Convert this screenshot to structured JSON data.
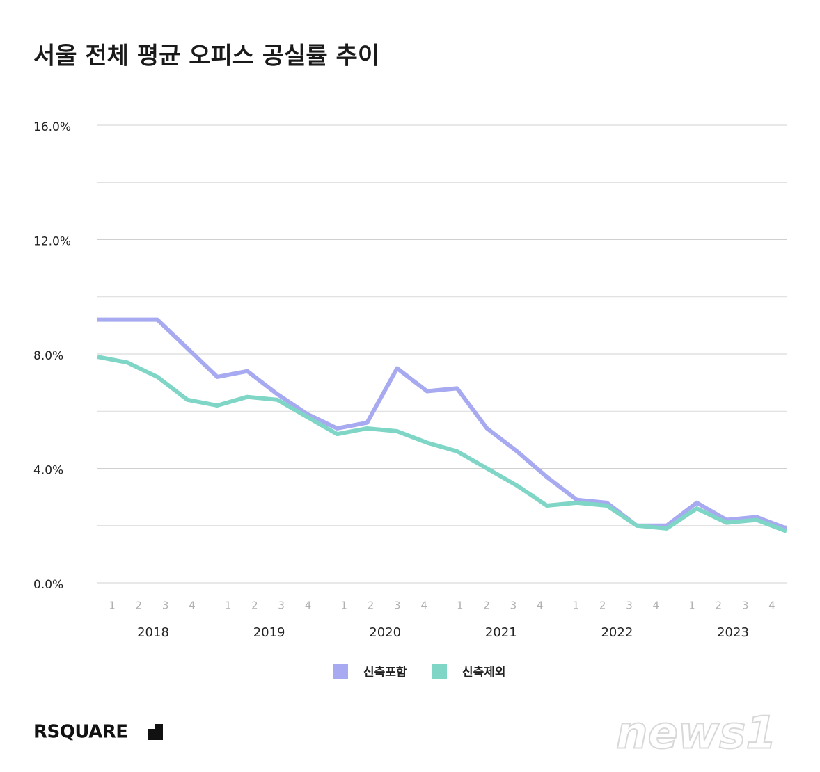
{
  "chart_data": {
    "type": "line",
    "title": "서울 전체 평균 오피스 공실률 추이",
    "categories": [
      "1",
      "2",
      "3",
      "4",
      "1",
      "2",
      "3",
      "4",
      "1",
      "2",
      "3",
      "4",
      "1",
      "2",
      "3",
      "4",
      "1",
      "2",
      "3",
      "4",
      "1",
      "2",
      "3",
      "4"
    ],
    "category_groups": [
      "2018",
      "2019",
      "2020",
      "2021",
      "2022",
      "2023"
    ],
    "series": [
      {
        "name": "신축포함",
        "color": "#a7aaf0",
        "values": [
          9.2,
          9.2,
          9.2,
          8.2,
          7.2,
          7.4,
          6.6,
          5.9,
          5.4,
          5.6,
          7.5,
          6.7,
          6.8,
          5.4,
          4.6,
          3.7,
          2.9,
          2.8,
          2.0,
          2.0,
          2.8,
          2.2,
          2.3,
          1.9
        ]
      },
      {
        "name": "신축제외",
        "color": "#7fd6c6",
        "values": [
          7.9,
          7.7,
          7.2,
          6.4,
          6.2,
          6.5,
          6.4,
          5.8,
          5.2,
          5.4,
          5.3,
          4.9,
          4.6,
          4.0,
          3.4,
          2.7,
          2.8,
          2.7,
          2.0,
          1.9,
          2.6,
          2.1,
          2.2,
          1.8
        ]
      }
    ],
    "ylim": [
      0,
      16
    ],
    "yticks": [
      {
        "value": 0,
        "label": "0.0%"
      },
      {
        "value": 4,
        "label": "4.0%"
      },
      {
        "value": 8,
        "label": "8.0%"
      },
      {
        "value": 12,
        "label": "12.0%"
      },
      {
        "value": 16,
        "label": "16.0%"
      }
    ],
    "minor_yticks": [
      2,
      6,
      10,
      14
    ],
    "grid": true,
    "legend": "bottom"
  },
  "brand": "RSQUARE",
  "watermark": "news1"
}
